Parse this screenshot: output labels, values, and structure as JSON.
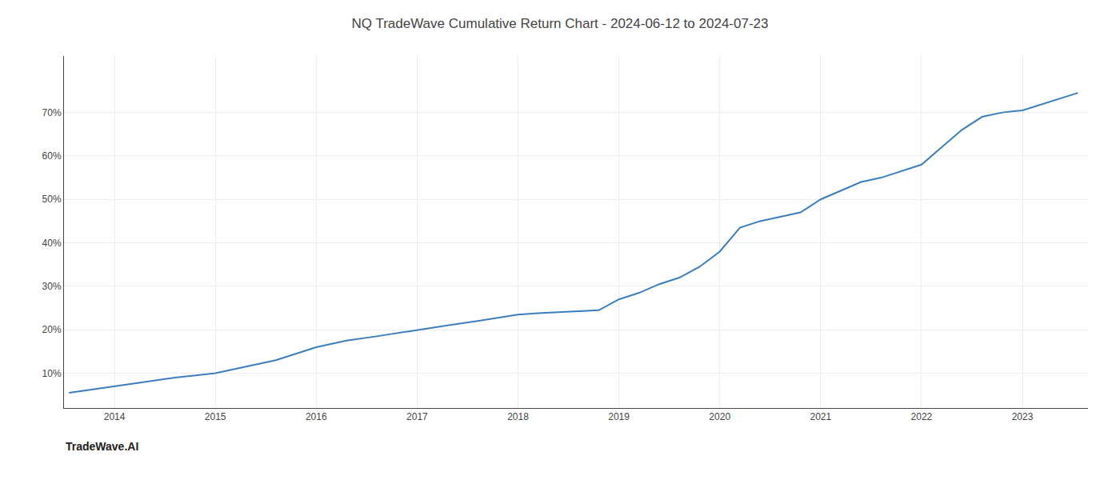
{
  "chart_data": {
    "type": "line",
    "title": "NQ TradeWave Cumulative Return Chart - 2024-06-12 to 2024-07-23",
    "annotations": [
      {
        "text": "TradeWave.AI"
      }
    ],
    "x": [
      2013.55,
      2013.7,
      2014.0,
      2014.3,
      2014.6,
      2015.0,
      2015.3,
      2015.6,
      2016.0,
      2016.3,
      2016.6,
      2017.0,
      2017.3,
      2017.6,
      2018.0,
      2018.2,
      2018.4,
      2018.6,
      2018.8,
      2019.0,
      2019.2,
      2019.4,
      2019.6,
      2019.8,
      2020.0,
      2020.2,
      2020.4,
      2020.6,
      2020.8,
      2021.0,
      2021.2,
      2021.4,
      2021.6,
      2021.8,
      2022.0,
      2022.2,
      2022.4,
      2022.6,
      2022.8,
      2023.0,
      2023.2,
      2023.4,
      2023.55
    ],
    "values": [
      5.5,
      6.0,
      7.0,
      8.0,
      9.0,
      10.0,
      11.5,
      13.0,
      16.0,
      17.5,
      18.5,
      20.0,
      21.0,
      22.0,
      23.5,
      23.8,
      24.0,
      24.2,
      24.5,
      27.0,
      28.5,
      30.5,
      32.0,
      34.5,
      38.0,
      43.5,
      45.0,
      46.0,
      47.0,
      50.0,
      52.0,
      54.0,
      55.0,
      56.5,
      58.0,
      62.0,
      66.0,
      69.0,
      70.0,
      70.5,
      72.0,
      73.5,
      74.5
    ],
    "color": "#3a7ebf",
    "xlim": [
      2013.5,
      2023.65
    ],
    "xticks": [
      2014,
      2015,
      2016,
      2017,
      2018,
      2019,
      2020,
      2021,
      2022,
      2023
    ],
    "ylim": [
      2,
      83
    ],
    "yticks": [
      {
        "value": 10,
        "label": "10%"
      },
      {
        "value": 20,
        "label": "20%"
      },
      {
        "value": 30,
        "label": "30%"
      },
      {
        "value": 40,
        "label": "40%"
      },
      {
        "value": 50,
        "label": "50%"
      },
      {
        "value": 60,
        "label": "60%"
      },
      {
        "value": 70,
        "label": "70%"
      }
    ],
    "grid": true
  }
}
